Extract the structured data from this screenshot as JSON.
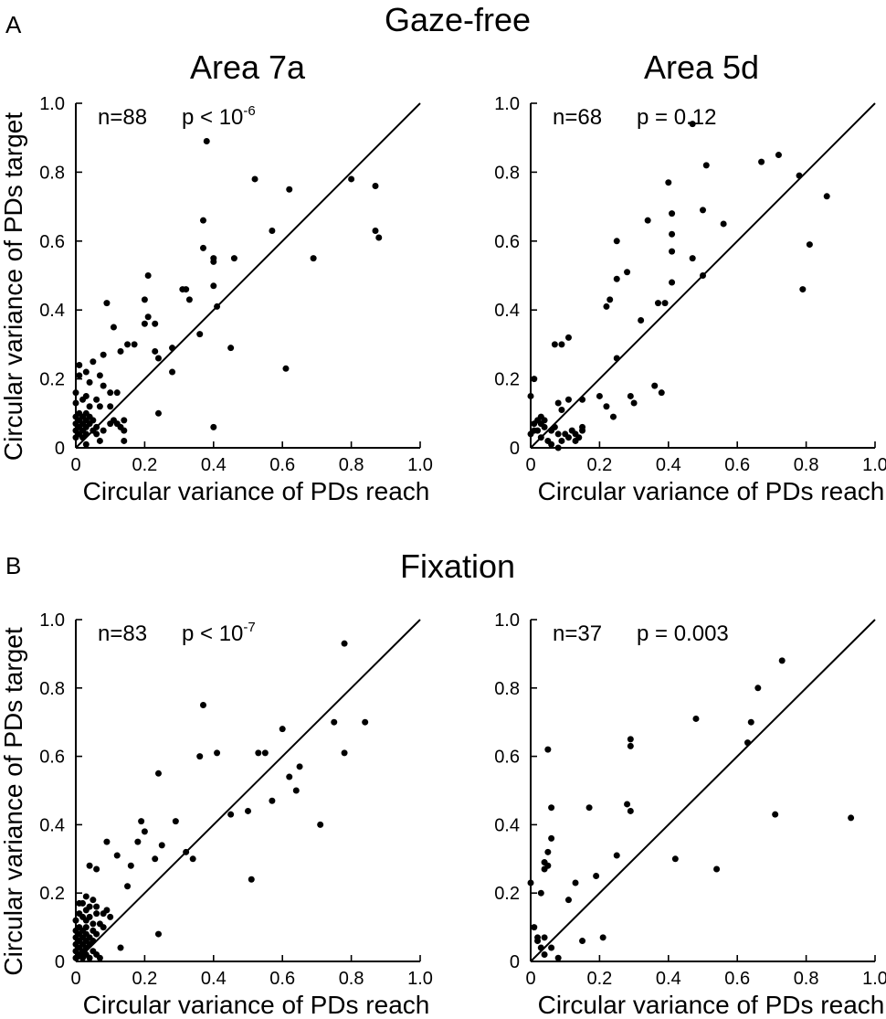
{
  "figure": {
    "panel_a": {
      "letter": "A",
      "title": "Gaze-free"
    },
    "panel_b": {
      "letter": "B",
      "title": "Fixation"
    },
    "col_titles": [
      "Area 7a",
      "Area 5d"
    ]
  },
  "chart_data": [
    {
      "type": "scatter",
      "panel": "A",
      "column_title": "Area 7a",
      "xlabel": "Circular variance of PDs reach",
      "ylabel": "Circular variance of PDs target",
      "xlim": [
        0,
        1
      ],
      "ylim": [
        0,
        1
      ],
      "xticks": [
        "0",
        "0.2",
        "0.4",
        "0.6",
        "0.8",
        "1.0"
      ],
      "yticks": [
        "0",
        "0.2",
        "0.4",
        "0.6",
        "0.8",
        "1.0"
      ],
      "annotation": {
        "n": "n=88",
        "p_base": "p < 10",
        "p_exp": "-6"
      },
      "unity_line": true,
      "points": [
        [
          0.38,
          0.89
        ],
        [
          0.52,
          0.78
        ],
        [
          0.8,
          0.78
        ],
        [
          0.87,
          0.76
        ],
        [
          0.62,
          0.75
        ],
        [
          0.87,
          0.63
        ],
        [
          0.88,
          0.61
        ],
        [
          0.57,
          0.63
        ],
        [
          0.37,
          0.66
        ],
        [
          0.37,
          0.58
        ],
        [
          0.4,
          0.55
        ],
        [
          0.4,
          0.54
        ],
        [
          0.46,
          0.55
        ],
        [
          0.69,
          0.55
        ],
        [
          0.21,
          0.5
        ],
        [
          0.31,
          0.46
        ],
        [
          0.32,
          0.46
        ],
        [
          0.4,
          0.47
        ],
        [
          0.33,
          0.43
        ],
        [
          0.2,
          0.43
        ],
        [
          0.41,
          0.41
        ],
        [
          0.09,
          0.42
        ],
        [
          0.21,
          0.38
        ],
        [
          0.2,
          0.36
        ],
        [
          0.23,
          0.36
        ],
        [
          0.11,
          0.35
        ],
        [
          0.36,
          0.33
        ],
        [
          0.15,
          0.3
        ],
        [
          0.17,
          0.3
        ],
        [
          0.13,
          0.28
        ],
        [
          0.08,
          0.27
        ],
        [
          0.23,
          0.28
        ],
        [
          0.24,
          0.26
        ],
        [
          0.28,
          0.29
        ],
        [
          0.45,
          0.29
        ],
        [
          0.05,
          0.25
        ],
        [
          0.01,
          0.24
        ],
        [
          0.03,
          0.22
        ],
        [
          0.07,
          0.21
        ],
        [
          0.28,
          0.22
        ],
        [
          0.61,
          0.23
        ],
        [
          0.01,
          0.21
        ],
        [
          0.04,
          0.19
        ],
        [
          0.08,
          0.18
        ],
        [
          0.0,
          0.16
        ],
        [
          0.03,
          0.15
        ],
        [
          0.1,
          0.16
        ],
        [
          0.12,
          0.16
        ],
        [
          0.02,
          0.14
        ],
        [
          0.06,
          0.14
        ],
        [
          0.0,
          0.13
        ],
        [
          0.04,
          0.12
        ],
        [
          0.07,
          0.12
        ],
        [
          0.1,
          0.12
        ],
        [
          0.01,
          0.1
        ],
        [
          0.03,
          0.1
        ],
        [
          0.0,
          0.09
        ],
        [
          0.02,
          0.09
        ],
        [
          0.04,
          0.09
        ],
        [
          0.24,
          0.1
        ],
        [
          0.01,
          0.08
        ],
        [
          0.03,
          0.08
        ],
        [
          0.05,
          0.08
        ],
        [
          0.11,
          0.08
        ],
        [
          0.14,
          0.08
        ],
        [
          0.0,
          0.07
        ],
        [
          0.02,
          0.07
        ],
        [
          0.04,
          0.07
        ],
        [
          0.1,
          0.07
        ],
        [
          0.12,
          0.07
        ],
        [
          0.13,
          0.06
        ],
        [
          0.4,
          0.06
        ],
        [
          0.01,
          0.06
        ],
        [
          0.03,
          0.06
        ],
        [
          0.06,
          0.06
        ],
        [
          0.0,
          0.05
        ],
        [
          0.02,
          0.05
        ],
        [
          0.05,
          0.05
        ],
        [
          0.08,
          0.05
        ],
        [
          0.14,
          0.05
        ],
        [
          0.01,
          0.04
        ],
        [
          0.03,
          0.04
        ],
        [
          0.06,
          0.04
        ],
        [
          0.0,
          0.03
        ],
        [
          0.02,
          0.03
        ],
        [
          0.07,
          0.02
        ],
        [
          0.14,
          0.02
        ],
        [
          0.03,
          0.01
        ]
      ]
    },
    {
      "type": "scatter",
      "panel": "A",
      "column_title": "Area 5d",
      "xlabel": "Circular variance of PDs reach",
      "ylabel": "",
      "xlim": [
        0,
        1
      ],
      "ylim": [
        0,
        1
      ],
      "xticks": [
        "0",
        "0.2",
        "0.4",
        "0.6",
        "0.8",
        "1.0"
      ],
      "yticks": [
        "0",
        "0.2",
        "0.4",
        "0.6",
        "0.8",
        "1.0"
      ],
      "annotation": {
        "n": "n=68",
        "p_base": "p = 0.12",
        "p_exp": ""
      },
      "unity_line": true,
      "points": [
        [
          0.47,
          0.94
        ],
        [
          0.72,
          0.85
        ],
        [
          0.67,
          0.83
        ],
        [
          0.51,
          0.82
        ],
        [
          0.78,
          0.79
        ],
        [
          0.4,
          0.77
        ],
        [
          0.86,
          0.73
        ],
        [
          0.5,
          0.69
        ],
        [
          0.41,
          0.68
        ],
        [
          0.34,
          0.66
        ],
        [
          0.56,
          0.65
        ],
        [
          0.41,
          0.62
        ],
        [
          0.25,
          0.6
        ],
        [
          0.81,
          0.59
        ],
        [
          0.41,
          0.57
        ],
        [
          0.47,
          0.55
        ],
        [
          0.28,
          0.51
        ],
        [
          0.25,
          0.49
        ],
        [
          0.5,
          0.5
        ],
        [
          0.41,
          0.48
        ],
        [
          0.79,
          0.46
        ],
        [
          0.23,
          0.43
        ],
        [
          0.22,
          0.41
        ],
        [
          0.37,
          0.42
        ],
        [
          0.39,
          0.42
        ],
        [
          0.32,
          0.37
        ],
        [
          0.11,
          0.32
        ],
        [
          0.07,
          0.3
        ],
        [
          0.09,
          0.3
        ],
        [
          0.25,
          0.26
        ],
        [
          0.01,
          0.2
        ],
        [
          0.36,
          0.18
        ],
        [
          0.38,
          0.16
        ],
        [
          0.2,
          0.15
        ],
        [
          0.29,
          0.15
        ],
        [
          0.0,
          0.15
        ],
        [
          0.11,
          0.14
        ],
        [
          0.15,
          0.14
        ],
        [
          0.08,
          0.13
        ],
        [
          0.3,
          0.13
        ],
        [
          0.22,
          0.12
        ],
        [
          0.09,
          0.11
        ],
        [
          0.24,
          0.09
        ],
        [
          0.03,
          0.09
        ],
        [
          0.02,
          0.08
        ],
        [
          0.04,
          0.08
        ],
        [
          0.01,
          0.07
        ],
        [
          0.03,
          0.07
        ],
        [
          0.04,
          0.06
        ],
        [
          0.07,
          0.06
        ],
        [
          0.15,
          0.06
        ],
        [
          0.01,
          0.05
        ],
        [
          0.02,
          0.05
        ],
        [
          0.06,
          0.05
        ],
        [
          0.12,
          0.05
        ],
        [
          0.15,
          0.05
        ],
        [
          0.0,
          0.04
        ],
        [
          0.08,
          0.04
        ],
        [
          0.1,
          0.04
        ],
        [
          0.13,
          0.04
        ],
        [
          0.03,
          0.03
        ],
        [
          0.11,
          0.03
        ],
        [
          0.14,
          0.03
        ],
        [
          0.05,
          0.02
        ],
        [
          0.09,
          0.02
        ],
        [
          0.06,
          0.01
        ],
        [
          0.13,
          0.02
        ],
        [
          0.08,
          0.0
        ]
      ]
    },
    {
      "type": "scatter",
      "panel": "B",
      "column_title": "Area 7a",
      "xlabel": "Circular variance of PDs reach",
      "ylabel": "Circular variance of PDs target",
      "xlim": [
        0,
        1
      ],
      "ylim": [
        0,
        1
      ],
      "xticks": [
        "0",
        "0.2",
        "0.4",
        "0.6",
        "0.8",
        "1.0"
      ],
      "yticks": [
        "0",
        "0.2",
        "0.4",
        "0.6",
        "0.8",
        "1.0"
      ],
      "annotation": {
        "n": "n=83",
        "p_base": "p < 10",
        "p_exp": "-7"
      },
      "unity_line": true,
      "points": [
        [
          0.78,
          0.93
        ],
        [
          0.37,
          0.75
        ],
        [
          0.75,
          0.7
        ],
        [
          0.84,
          0.7
        ],
        [
          0.6,
          0.68
        ],
        [
          0.41,
          0.61
        ],
        [
          0.53,
          0.61
        ],
        [
          0.55,
          0.61
        ],
        [
          0.78,
          0.61
        ],
        [
          0.36,
          0.6
        ],
        [
          0.65,
          0.57
        ],
        [
          0.62,
          0.54
        ],
        [
          0.64,
          0.5
        ],
        [
          0.24,
          0.55
        ],
        [
          0.57,
          0.47
        ],
        [
          0.5,
          0.44
        ],
        [
          0.45,
          0.43
        ],
        [
          0.71,
          0.4
        ],
        [
          0.19,
          0.41
        ],
        [
          0.29,
          0.41
        ],
        [
          0.2,
          0.38
        ],
        [
          0.18,
          0.35
        ],
        [
          0.09,
          0.35
        ],
        [
          0.25,
          0.34
        ],
        [
          0.32,
          0.32
        ],
        [
          0.34,
          0.3
        ],
        [
          0.12,
          0.31
        ],
        [
          0.23,
          0.3
        ],
        [
          0.16,
          0.28
        ],
        [
          0.04,
          0.28
        ],
        [
          0.06,
          0.27
        ],
        [
          0.51,
          0.24
        ],
        [
          0.15,
          0.22
        ],
        [
          0.03,
          0.19
        ],
        [
          0.05,
          0.18
        ],
        [
          0.01,
          0.17
        ],
        [
          0.02,
          0.17
        ],
        [
          0.04,
          0.16
        ],
        [
          0.06,
          0.16
        ],
        [
          0.03,
          0.15
        ],
        [
          0.01,
          0.14
        ],
        [
          0.09,
          0.15
        ],
        [
          0.06,
          0.14
        ],
        [
          0.08,
          0.14
        ],
        [
          0.02,
          0.13
        ],
        [
          0.04,
          0.13
        ],
        [
          0.1,
          0.13
        ],
        [
          0.0,
          0.12
        ],
        [
          0.03,
          0.12
        ],
        [
          0.05,
          0.11
        ],
        [
          0.07,
          0.11
        ],
        [
          0.01,
          0.1
        ],
        [
          0.03,
          0.1
        ],
        [
          0.08,
          0.1
        ],
        [
          0.0,
          0.09
        ],
        [
          0.02,
          0.09
        ],
        [
          0.05,
          0.09
        ],
        [
          0.01,
          0.08
        ],
        [
          0.03,
          0.08
        ],
        [
          0.06,
          0.08
        ],
        [
          0.24,
          0.08
        ],
        [
          0.0,
          0.07
        ],
        [
          0.02,
          0.07
        ],
        [
          0.04,
          0.07
        ],
        [
          0.01,
          0.06
        ],
        [
          0.03,
          0.06
        ],
        [
          0.05,
          0.06
        ],
        [
          0.0,
          0.05
        ],
        [
          0.02,
          0.05
        ],
        [
          0.04,
          0.05
        ],
        [
          0.01,
          0.04
        ],
        [
          0.03,
          0.04
        ],
        [
          0.13,
          0.04
        ],
        [
          0.0,
          0.03
        ],
        [
          0.02,
          0.03
        ],
        [
          0.05,
          0.03
        ],
        [
          0.01,
          0.02
        ],
        [
          0.03,
          0.02
        ],
        [
          0.04,
          0.01
        ],
        [
          0.06,
          0.02
        ],
        [
          0.07,
          0.01
        ],
        [
          0.02,
          0.01
        ],
        [
          0.0,
          0.01
        ]
      ]
    },
    {
      "type": "scatter",
      "panel": "B",
      "column_title": "Area 5d",
      "xlabel": "Circular variance of PDs reach",
      "ylabel": "",
      "xlim": [
        0,
        1
      ],
      "ylim": [
        0,
        1
      ],
      "xticks": [
        "0",
        "0.2",
        "0.4",
        "0.6",
        "0.8",
        "1.0"
      ],
      "yticks": [
        "0",
        "0.2",
        "0.4",
        "0.6",
        "0.8",
        "1.0"
      ],
      "annotation": {
        "n": "n=37",
        "p_base": "p = 0.003",
        "p_exp": ""
      },
      "unity_line": true,
      "points": [
        [
          0.73,
          0.88
        ],
        [
          0.66,
          0.8
        ],
        [
          0.48,
          0.71
        ],
        [
          0.64,
          0.7
        ],
        [
          0.29,
          0.65
        ],
        [
          0.29,
          0.63
        ],
        [
          0.63,
          0.64
        ],
        [
          0.05,
          0.62
        ],
        [
          0.06,
          0.45
        ],
        [
          0.17,
          0.45
        ],
        [
          0.28,
          0.46
        ],
        [
          0.29,
          0.44
        ],
        [
          0.71,
          0.43
        ],
        [
          0.93,
          0.42
        ],
        [
          0.06,
          0.36
        ],
        [
          0.05,
          0.32
        ],
        [
          0.25,
          0.31
        ],
        [
          0.42,
          0.3
        ],
        [
          0.04,
          0.29
        ],
        [
          0.05,
          0.28
        ],
        [
          0.04,
          0.27
        ],
        [
          0.54,
          0.27
        ],
        [
          0.19,
          0.25
        ],
        [
          0.0,
          0.23
        ],
        [
          0.13,
          0.23
        ],
        [
          0.03,
          0.2
        ],
        [
          0.11,
          0.18
        ],
        [
          0.01,
          0.1
        ],
        [
          0.02,
          0.07
        ],
        [
          0.04,
          0.07
        ],
        [
          0.21,
          0.07
        ],
        [
          0.02,
          0.06
        ],
        [
          0.15,
          0.06
        ],
        [
          0.03,
          0.04
        ],
        [
          0.06,
          0.04
        ],
        [
          0.04,
          0.02
        ],
        [
          0.08,
          0.01
        ]
      ]
    }
  ]
}
